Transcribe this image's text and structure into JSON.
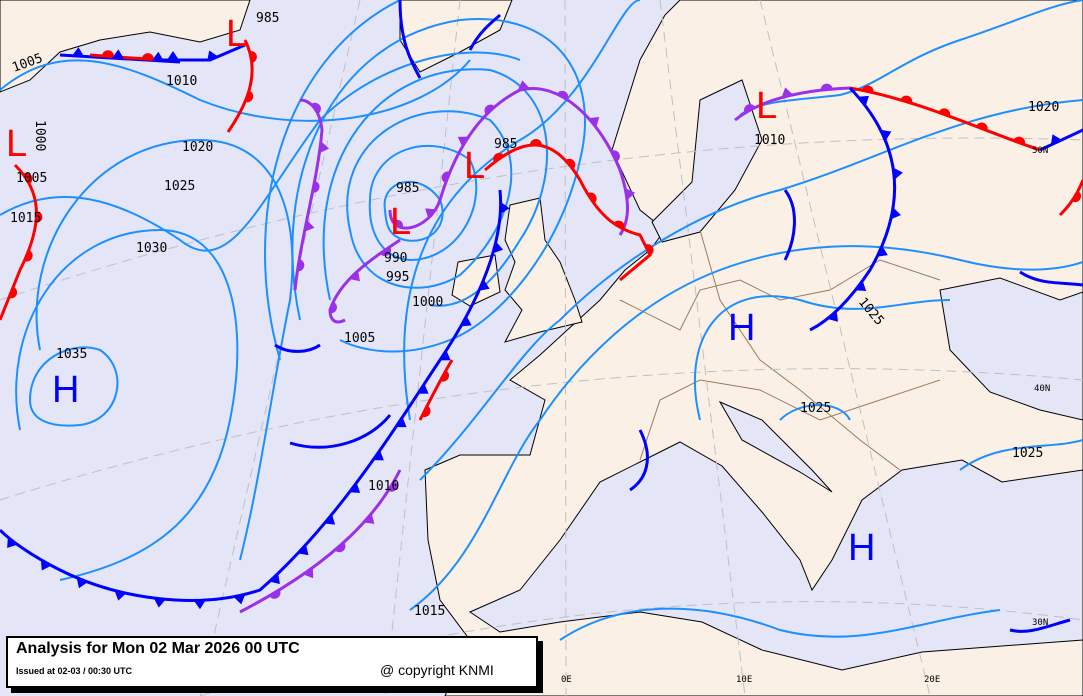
{
  "caption": {
    "title": "Analysis for Mon 02 Mar 2026 00 UTC",
    "issued": "Issued at 02-03 / 00:30 UTC",
    "copyright": "@ copyright KNMI"
  },
  "pressure_labels": [
    "985",
    "1005",
    "1010",
    "1000",
    "1005",
    "1020",
    "1025",
    "1015",
    "1030",
    "1035",
    "985",
    "985",
    "990",
    "995",
    "1000",
    "1005",
    "1010",
    "1015",
    "1010",
    "1020",
    "1025",
    "1025",
    "1025"
  ],
  "centers": [
    {
      "type": "L"
    },
    {
      "type": "L"
    },
    {
      "type": "H"
    },
    {
      "type": "L"
    },
    {
      "type": "L"
    },
    {
      "type": "L"
    },
    {
      "type": "H"
    },
    {
      "type": "H"
    }
  ],
  "grid_labels": {
    "lat": [
      "50N",
      "40N",
      "30N"
    ],
    "lon": [
      "0E",
      "10E",
      "20E"
    ]
  },
  "colors": {
    "low": "#ff0000",
    "high": "#0000ff",
    "isobar": "#1e8fff",
    "cold_front": "#0000ff",
    "warm_front": "#ff0000",
    "occluded_front": "#9b30e8",
    "land": "#faf0e6",
    "sea": "#e4e6f8"
  }
}
